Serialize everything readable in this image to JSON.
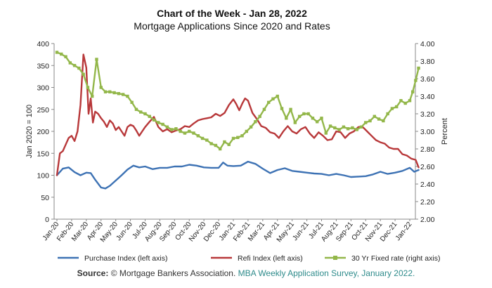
{
  "chart_data": {
    "type": "line",
    "title": "Chart of the Week - Jan 28, 2022",
    "subtitle": "Mortgage Applications Since 2020 and Rates",
    "left_axis": {
      "label": "Jan 2020 = 100",
      "ylim": [
        0,
        400
      ],
      "ticks": [
        "0",
        "50",
        "100",
        "150",
        "200",
        "250",
        "300",
        "350",
        "400"
      ]
    },
    "right_axis": {
      "label": "Percent",
      "ylim": [
        2.0,
        4.0
      ],
      "ticks": [
        "2.00",
        "2.20",
        "2.40",
        "2.60",
        "2.80",
        "3.00",
        "3.20",
        "3.40",
        "3.60",
        "3.80",
        "4.00"
      ]
    },
    "x_ticks": [
      "Jan-20",
      "Feb-20",
      "Mar-20",
      "Apr-20",
      "May-20",
      "Jun-20",
      "Jul-20",
      "Aug-20",
      "Sep-20",
      "Oct-20",
      "Nov-20",
      "Dec-20",
      "Jan-21",
      "Feb-21",
      "Mar-21",
      "Apr-21",
      "May-21",
      "Jun-21",
      "Jul-21",
      "Aug-21",
      "Sep-21",
      "Oct-21",
      "Nov-21",
      "Dec-21",
      "Jan-22"
    ],
    "grid": false,
    "legend_position": "bottom",
    "series": [
      {
        "name": "Purchase Index (left axis)",
        "axis": "left",
        "color": "#3d72b4",
        "x": [
          0,
          0.4,
          0.8,
          1.2,
          1.6,
          2,
          2.3,
          2.6,
          3,
          3.3,
          3.6,
          4,
          4.4,
          4.8,
          5.2,
          5.6,
          6,
          6.5,
          7,
          7.5,
          8,
          8.5,
          9,
          9.5,
          10,
          10.5,
          11,
          11.3,
          11.6,
          12,
          12.5,
          13,
          13.5,
          14,
          14.5,
          15,
          15.5,
          16,
          16.5,
          17,
          17.5,
          18,
          18.5,
          19,
          19.5,
          20,
          20.5,
          21,
          21.5,
          22,
          22.5,
          23,
          23.5,
          24,
          24.3,
          24.6
        ],
        "values": [
          100,
          115,
          118,
          107,
          100,
          106,
          105,
          90,
          72,
          70,
          76,
          88,
          100,
          113,
          122,
          118,
          120,
          114,
          117,
          117,
          120,
          120,
          124,
          122,
          118,
          117,
          117,
          129,
          122,
          121,
          122,
          131,
          126,
          115,
          105,
          112,
          116,
          110,
          108,
          106,
          104,
          103,
          100,
          103,
          100,
          96,
          97,
          98,
          102,
          108,
          103,
          106,
          110,
          117,
          108,
          112
        ]
      },
      {
        "name": "Refi Index (left axis)",
        "axis": "left",
        "color": "#b8383a",
        "x": [
          0,
          0.2,
          0.4,
          0.6,
          0.8,
          1,
          1.2,
          1.4,
          1.6,
          1.8,
          2,
          2.15,
          2.3,
          2.45,
          2.6,
          2.8,
          3,
          3.2,
          3.4,
          3.6,
          3.8,
          4,
          4.2,
          4.4,
          4.6,
          4.8,
          5,
          5.2,
          5.4,
          5.6,
          5.8,
          6,
          6.3,
          6.6,
          6.9,
          7.2,
          7.5,
          7.8,
          8.1,
          8.4,
          8.7,
          9,
          9.3,
          9.6,
          9.9,
          10.2,
          10.5,
          10.8,
          11.1,
          11.4,
          11.7,
          12,
          12.2,
          12.4,
          12.6,
          12.8,
          13,
          13.3,
          13.6,
          13.9,
          14.2,
          14.5,
          14.8,
          15.1,
          15.4,
          15.7,
          16,
          16.3,
          16.6,
          16.9,
          17.2,
          17.5,
          17.8,
          18.1,
          18.4,
          18.7,
          19,
          19.3,
          19.6,
          19.9,
          20.2,
          20.5,
          20.8,
          21.1,
          21.4,
          21.7,
          22,
          22.3,
          22.6,
          22.9,
          23.2,
          23.5,
          23.8,
          24.1,
          24.4,
          24.6
        ],
        "values": [
          100,
          150,
          155,
          170,
          185,
          190,
          178,
          200,
          260,
          375,
          345,
          240,
          275,
          220,
          245,
          240,
          230,
          222,
          210,
          225,
          218,
          203,
          210,
          200,
          190,
          210,
          215,
          212,
          202,
          190,
          200,
          210,
          222,
          233,
          210,
          200,
          205,
          198,
          202,
          205,
          212,
          210,
          218,
          225,
          228,
          230,
          232,
          240,
          235,
          242,
          260,
          273,
          262,
          248,
          263,
          275,
          270,
          242,
          228,
          212,
          208,
          198,
          195,
          185,
          200,
          212,
          200,
          195,
          205,
          210,
          195,
          185,
          198,
          190,
          180,
          182,
          200,
          198,
          185,
          195,
          200,
          210,
          210,
          200,
          190,
          180,
          175,
          172,
          163,
          160,
          160,
          148,
          145,
          138,
          135,
          118
        ]
      },
      {
        "name": "30 Yr Fixed rate (right axis)",
        "axis": "right",
        "color": "#93b74a",
        "x": [
          0,
          0.3,
          0.6,
          0.9,
          1.2,
          1.5,
          1.8,
          2.1,
          2.4,
          2.7,
          3,
          3.3,
          3.6,
          3.9,
          4.2,
          4.5,
          4.8,
          5.1,
          5.4,
          5.7,
          6,
          6.3,
          6.6,
          6.9,
          7.2,
          7.5,
          7.8,
          8.1,
          8.4,
          8.7,
          9,
          9.3,
          9.6,
          9.9,
          10.2,
          10.5,
          10.8,
          11.1,
          11.4,
          11.7,
          12,
          12.3,
          12.6,
          12.9,
          13.2,
          13.5,
          13.8,
          14.1,
          14.4,
          14.7,
          15,
          15.3,
          15.6,
          15.9,
          16.2,
          16.5,
          16.8,
          17.1,
          17.4,
          17.7,
          18,
          18.3,
          18.6,
          18.9,
          19.2,
          19.5,
          19.8,
          20.1,
          20.4,
          20.7,
          21,
          21.3,
          21.6,
          21.9,
          22.2,
          22.5,
          22.8,
          23.1,
          23.4,
          23.7,
          24,
          24.2,
          24.4,
          24.6
        ],
        "values": [
          3.9,
          3.88,
          3.85,
          3.78,
          3.75,
          3.72,
          3.65,
          3.5,
          3.4,
          3.82,
          3.5,
          3.45,
          3.45,
          3.44,
          3.43,
          3.42,
          3.4,
          3.33,
          3.25,
          3.22,
          3.2,
          3.17,
          3.13,
          3.1,
          3.08,
          3.05,
          3.02,
          3.03,
          3.0,
          2.98,
          3.0,
          2.98,
          2.95,
          2.92,
          2.9,
          2.86,
          2.84,
          2.8,
          2.88,
          2.85,
          2.92,
          2.93,
          2.95,
          3.0,
          3.05,
          3.11,
          3.17,
          3.25,
          3.33,
          3.37,
          3.4,
          3.26,
          3.15,
          3.25,
          3.1,
          3.17,
          3.2,
          3.2,
          3.15,
          3.11,
          3.15,
          2.98,
          3.06,
          3.04,
          3.02,
          3.05,
          3.03,
          3.04,
          3.02,
          3.05,
          3.1,
          3.12,
          3.17,
          3.14,
          3.12,
          3.2,
          3.26,
          3.28,
          3.35,
          3.32,
          3.35,
          3.45,
          3.58,
          3.72
        ]
      }
    ]
  },
  "footer": {
    "source_label": "Source:",
    "source_text": "© Mortgage Bankers Association.",
    "source_link": "MBA Weekly Application Survey, January 2022."
  }
}
